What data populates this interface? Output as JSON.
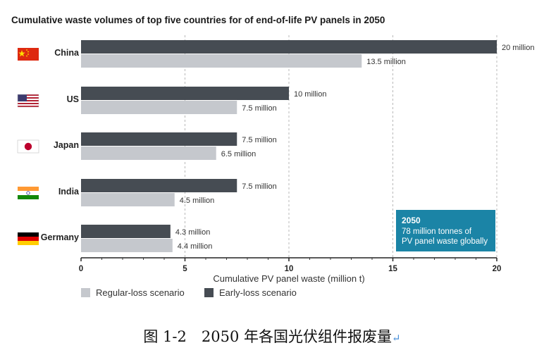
{
  "chart_data": {
    "type": "bar",
    "orientation": "horizontal",
    "title": "Cumulative waste volumes of top five countries for of end-of-life PV panels in 2050",
    "categories": [
      "China",
      "US",
      "Japan",
      "India",
      "Germany"
    ],
    "series": [
      {
        "name": "Early-loss scenario",
        "values": [
          20,
          10,
          7.5,
          7.5,
          4.3
        ],
        "labels": [
          "20 million",
          "10 million",
          "7.5 million",
          "7.5 million",
          "4.3 million"
        ]
      },
      {
        "name": "Regular-loss scenario",
        "values": [
          13.5,
          7.5,
          6.5,
          4.5,
          4.4
        ],
        "labels": [
          "13.5 million",
          "7.5 million",
          "6.5 million",
          "4.5 million",
          "4.4 million"
        ]
      }
    ],
    "xlabel": "Cumulative PV panel waste (million t)",
    "xlim": [
      0,
      20
    ],
    "xticks": [
      "0",
      "5",
      "10",
      "15",
      "20"
    ],
    "grid": "vertical dashed",
    "legend": "bottom-left",
    "legend_order": [
      "Regular-loss scenario",
      "Early-loss scenario"
    ],
    "annotation": {
      "year": "2050",
      "lines": [
        "78 million tonnes of",
        "PV panel waste globally"
      ]
    }
  },
  "colors": {
    "early": "#464c53",
    "regular": "#c5c8cd",
    "callout": "#1b84a6",
    "grid": "#b8b8b8"
  },
  "flags": [
    "china-flag-icon",
    "us-flag-icon",
    "japan-flag-icon",
    "india-flag-icon",
    "germany-flag-icon"
  ],
  "caption": {
    "text": "图 1-2　2050 年各国光伏组件报废量",
    "mark": "↵"
  }
}
